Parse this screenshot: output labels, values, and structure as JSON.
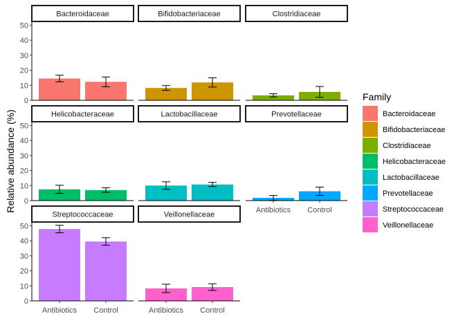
{
  "chart_data": {
    "type": "bar",
    "ylabel": "Relative abundance (%)",
    "ylim": [
      0,
      52
    ],
    "yticks": [
      0,
      10,
      20,
      30,
      40,
      50
    ],
    "categories": [
      "Antibiotics",
      "Control"
    ],
    "facet_layout": "wrap-3-columns",
    "legend": {
      "title": "Family",
      "position": "right",
      "entries": [
        {
          "label": "Bacteroidaceae",
          "color": "#F8766D"
        },
        {
          "label": "Bifidobacteriaceae",
          "color": "#CD9600"
        },
        {
          "label": "Clostridiaceae",
          "color": "#7CAE00"
        },
        {
          "label": "Helicobacteraceae",
          "color": "#00BE67"
        },
        {
          "label": "Lactobacillaceae",
          "color": "#00BFC4"
        },
        {
          "label": "Prevotellaceae",
          "color": "#00A9FF"
        },
        {
          "label": "Streptococcaceae",
          "color": "#C77CFF"
        },
        {
          "label": "Veillonellaceae",
          "color": "#FF61CC"
        }
      ]
    },
    "panels": [
      {
        "title": "Bacteroidaceae",
        "color": "#F8766D",
        "values": [
          14.5,
          12.3
        ],
        "err_low": [
          12.3,
          9.0
        ],
        "err_high": [
          16.7,
          15.5
        ]
      },
      {
        "title": "Bifidobacteriaceae",
        "color": "#CD9600",
        "values": [
          8.2,
          11.9
        ],
        "err_low": [
          6.6,
          8.8
        ],
        "err_high": [
          9.8,
          15.0
        ]
      },
      {
        "title": "Clostridiaceae",
        "color": "#7CAE00",
        "values": [
          3.3,
          5.6
        ],
        "err_low": [
          2.2,
          2.0
        ],
        "err_high": [
          4.4,
          9.2
        ]
      },
      {
        "title": "Helicobacteraceae",
        "color": "#00BE67",
        "values": [
          7.5,
          7.0
        ],
        "err_low": [
          4.8,
          5.5
        ],
        "err_high": [
          10.2,
          8.5
        ]
      },
      {
        "title": "Lactobacillaceae",
        "color": "#00BFC4",
        "values": [
          10.0,
          10.7
        ],
        "err_low": [
          7.5,
          9.3
        ],
        "err_high": [
          12.5,
          12.1
        ]
      },
      {
        "title": "Prevotellaceae",
        "color": "#00A9FF",
        "values": [
          1.8,
          6.2
        ],
        "err_low": [
          0.2,
          3.4
        ],
        "err_high": [
          3.4,
          9.0
        ]
      },
      {
        "title": "Streptococcaceae",
        "color": "#C77CFF",
        "values": [
          47.8,
          39.5
        ],
        "err_low": [
          45.3,
          37.0
        ],
        "err_high": [
          50.3,
          42.0
        ]
      },
      {
        "title": "Veillonellaceae",
        "color": "#FF61CC",
        "values": [
          8.3,
          9.2
        ],
        "err_low": [
          5.5,
          7.0
        ],
        "err_high": [
          11.1,
          11.4
        ]
      }
    ]
  }
}
